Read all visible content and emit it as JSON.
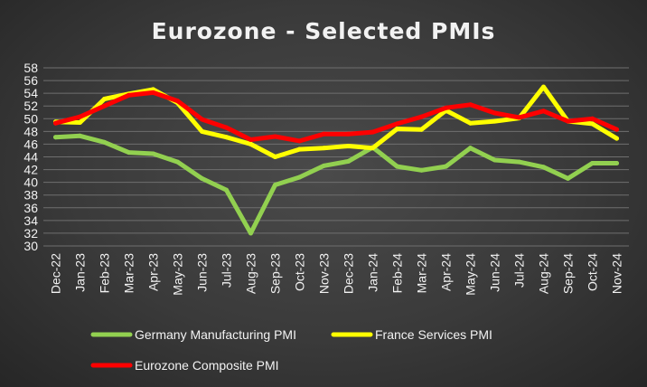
{
  "chart_data": {
    "type": "line",
    "title": "Eurozone - Selected PMIs",
    "xlabel": "",
    "ylabel": "",
    "ylim": [
      30,
      58
    ],
    "yticks": [
      30,
      32,
      34,
      36,
      38,
      40,
      42,
      44,
      46,
      48,
      50,
      52,
      54,
      56,
      58
    ],
    "grid": true,
    "legend_position": "bottom",
    "categories": [
      "Dec-22",
      "Jan-23",
      "Feb-23",
      "Mar-23",
      "Apr-23",
      "May-23",
      "Jun-23",
      "Jul-23",
      "Aug-23",
      "Sep-23",
      "Oct-23",
      "Nov-23",
      "Dec-23",
      "Jan-24",
      "Feb-24",
      "Mar-24",
      "Apr-24",
      "May-24",
      "Jun-24",
      "Jul-24",
      "Aug-24",
      "Sep-24",
      "Oct-24",
      "Nov-24"
    ],
    "series": [
      {
        "name": "Germany Manufacturing PMI",
        "color": "#92d050",
        "values": [
          47.1,
          47.3,
          46.3,
          44.7,
          44.5,
          43.2,
          40.6,
          38.8,
          32.0,
          39.6,
          40.8,
          42.6,
          43.3,
          45.5,
          42.5,
          41.9,
          42.5,
          45.4,
          43.5,
          43.2,
          42.4,
          40.6,
          43.0,
          43.0
        ]
      },
      {
        "name": "France Services PMI",
        "color": "#ffff00",
        "values": [
          49.5,
          49.4,
          53.1,
          53.9,
          54.6,
          52.5,
          48.0,
          47.1,
          46.0,
          44.0,
          45.2,
          45.4,
          45.7,
          45.4,
          48.4,
          48.3,
          51.3,
          49.3,
          49.6,
          50.1,
          55.0,
          49.6,
          49.2,
          46.9
        ]
      },
      {
        "name": "Eurozone Composite PMI",
        "color": "#ff0000",
        "values": [
          49.3,
          50.3,
          52.0,
          53.7,
          54.1,
          52.8,
          49.9,
          48.6,
          46.7,
          47.2,
          46.5,
          47.6,
          47.6,
          47.9,
          49.2,
          50.3,
          51.7,
          52.2,
          50.9,
          50.2,
          51.2,
          49.6,
          50.0,
          48.3
        ]
      }
    ]
  }
}
